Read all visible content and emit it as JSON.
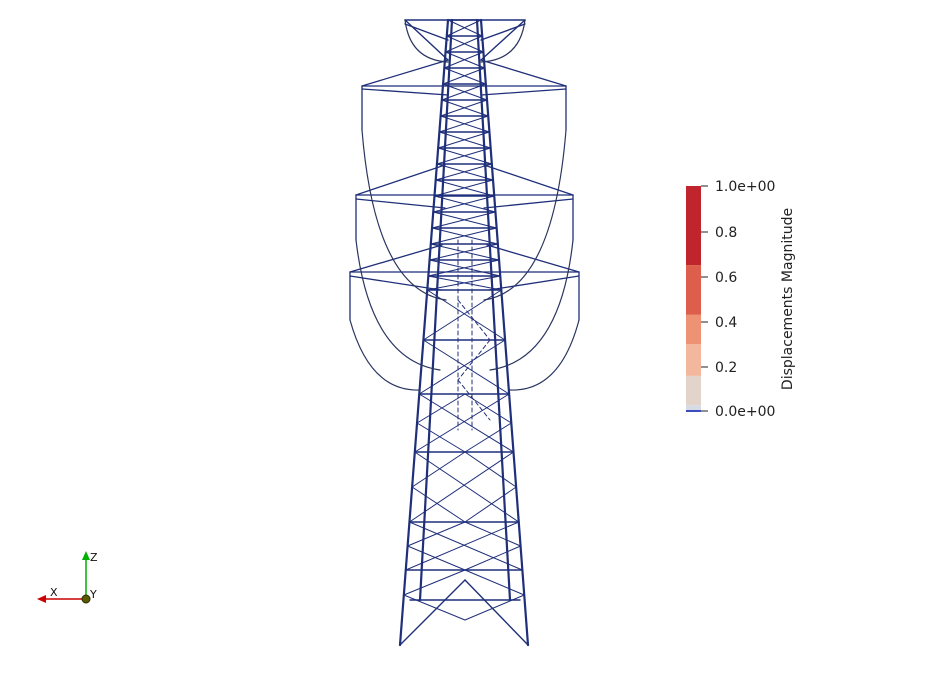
{
  "scalar_bar": {
    "title": "Displacements Magnitude",
    "tick_labels": [
      "1.0e+00",
      "0.8",
      "0.6",
      "0.4",
      "0.2",
      "0.0e+00"
    ],
    "range": [
      0,
      1
    ],
    "segments": [
      {
        "from": 0.0,
        "to": 0.03,
        "color": "#d7dbe4"
      },
      {
        "from": 0.03,
        "to": 0.16,
        "color": "#e2d3cb"
      },
      {
        "from": 0.16,
        "to": 0.3,
        "color": "#f2b79c"
      },
      {
        "from": 0.3,
        "to": 0.43,
        "color": "#ee9274"
      },
      {
        "from": 0.43,
        "to": 0.65,
        "color": "#dd5f4b"
      },
      {
        "from": 0.65,
        "to": 1.0,
        "color": "#c0252e"
      }
    ],
    "low_color": "#3b4cc0"
  },
  "orientation_axes": {
    "x_label": "X",
    "y_label": "Y",
    "z_label": "Z",
    "x_color": "#cc0000",
    "y_color": "#c8c800",
    "z_color": "#00b000"
  },
  "model": {
    "line_color": "#1f2f7a",
    "cable_color": "#2a3560"
  }
}
